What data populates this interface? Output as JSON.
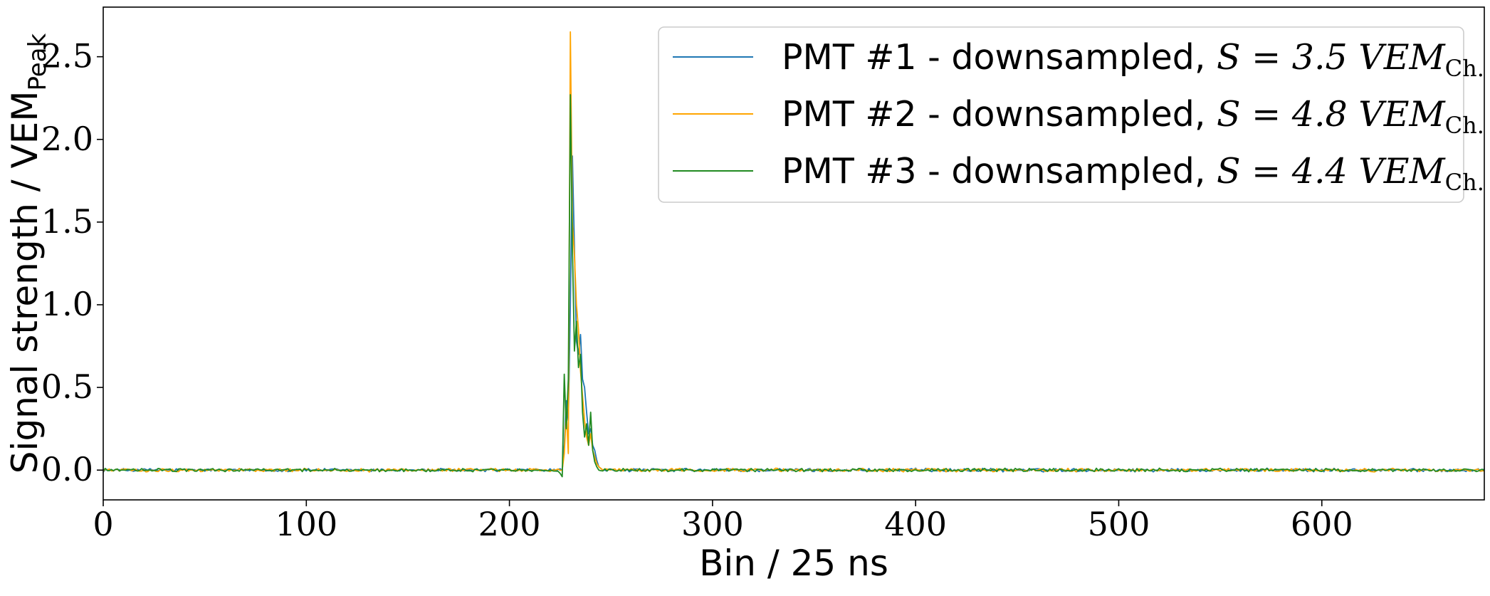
{
  "chart_data": {
    "type": "line",
    "xlabel": "Bin / 25 ns",
    "ylabel": "Signal strength / VEM",
    "ylabel_subscript": "Peak",
    "xlim": [
      0,
      680
    ],
    "ylim": [
      -0.18,
      2.8
    ],
    "xticks": [
      0,
      100,
      200,
      300,
      400,
      500,
      600
    ],
    "xtick_labels": [
      "0",
      "100",
      "200",
      "300",
      "400",
      "500",
      "600"
    ],
    "yticks": [
      0.0,
      0.5,
      1.0,
      1.5,
      2.0,
      2.5
    ],
    "ytick_labels": [
      "0.0",
      "0.5",
      "1.0",
      "1.5",
      "2.0",
      "2.5"
    ],
    "grid": false,
    "legend_position": "top-right",
    "series": [
      {
        "name": "PMT #1 - downsampled, S = 3.5 VEM_Ch.",
        "legend_prefix": "PMT #1 - downsampled, ",
        "legend_math": "S = 3.5 VEM",
        "legend_sub": "Ch.",
        "color": "#1f77b4",
        "baseline_noise": 0.008,
        "peak_points": [
          [
            226,
            0.0
          ],
          [
            227,
            0.15
          ],
          [
            228,
            0.42
          ],
          [
            229,
            0.3
          ],
          [
            230,
            1.0
          ],
          [
            231,
            1.9
          ],
          [
            232,
            1.35
          ],
          [
            233,
            0.78
          ],
          [
            234,
            0.7
          ],
          [
            235,
            0.82
          ],
          [
            236,
            0.55
          ],
          [
            237,
            0.5
          ],
          [
            238,
            0.35
          ],
          [
            239,
            0.22
          ],
          [
            240,
            0.25
          ],
          [
            241,
            0.15
          ],
          [
            242,
            0.12
          ],
          [
            243,
            0.06
          ],
          [
            244,
            0.02
          ],
          [
            245,
            0.01
          ],
          [
            246,
            0.0
          ]
        ]
      },
      {
        "name": "PMT #2 - downsampled, S = 4.8 VEM_Ch.",
        "legend_prefix": "PMT #2 - downsampled, ",
        "legend_math": "S = 4.8 VEM",
        "legend_sub": "Ch.",
        "color": "#ffa500",
        "baseline_noise": 0.008,
        "peak_points": [
          [
            226,
            0.0
          ],
          [
            227,
            0.1
          ],
          [
            228,
            0.35
          ],
          [
            229,
            0.1
          ],
          [
            230,
            2.65
          ],
          [
            231,
            1.5
          ],
          [
            232,
            1.3
          ],
          [
            233,
            1.0
          ],
          [
            234,
            0.85
          ],
          [
            235,
            0.6
          ],
          [
            236,
            0.45
          ],
          [
            237,
            0.3
          ],
          [
            238,
            0.2
          ],
          [
            239,
            0.15
          ],
          [
            240,
            0.22
          ],
          [
            241,
            0.12
          ],
          [
            242,
            0.08
          ],
          [
            243,
            0.04
          ],
          [
            244,
            0.02
          ],
          [
            245,
            0.01
          ],
          [
            246,
            0.0
          ]
        ]
      },
      {
        "name": "PMT #3 - downsampled, S = 4.4 VEM_Ch.",
        "legend_prefix": "PMT #3 - downsampled, ",
        "legend_math": "S = 4.4 VEM",
        "legend_sub": "Ch.",
        "color": "#228b22",
        "baseline_noise": 0.008,
        "peak_points": [
          [
            225,
            -0.02
          ],
          [
            226,
            -0.04
          ],
          [
            227,
            0.58
          ],
          [
            228,
            0.25
          ],
          [
            229,
            0.55
          ],
          [
            230,
            2.27
          ],
          [
            231,
            1.35
          ],
          [
            232,
            0.72
          ],
          [
            233,
            0.9
          ],
          [
            234,
            0.62
          ],
          [
            235,
            0.7
          ],
          [
            236,
            0.35
          ],
          [
            237,
            0.2
          ],
          [
            238,
            0.28
          ],
          [
            239,
            0.15
          ],
          [
            240,
            0.35
          ],
          [
            241,
            0.12
          ],
          [
            242,
            0.05
          ],
          [
            243,
            0.02
          ],
          [
            244,
            0.0
          ]
        ]
      }
    ]
  }
}
